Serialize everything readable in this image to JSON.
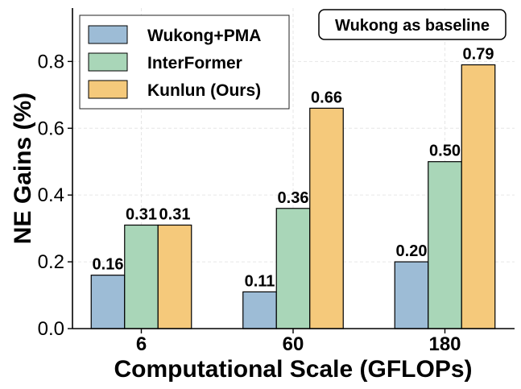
{
  "chart_data": {
    "type": "bar",
    "title": "",
    "xlabel": "Computational Scale (GFLOPs)",
    "ylabel": "NE Gains (%)",
    "categories": [
      "6",
      "60",
      "180"
    ],
    "ylim": [
      0,
      0.96
    ],
    "yticks": [
      "0.0",
      "0.2",
      "0.4",
      "0.6",
      "0.8"
    ],
    "ytick_values": [
      0,
      0.2,
      0.4,
      0.6,
      0.8
    ],
    "grid": true,
    "legend_position": "top-left",
    "annotation": "Wukong as baseline",
    "series": [
      {
        "name": "Wukong+PMA",
        "color": "#9dbcd6",
        "values": [
          0.16,
          0.11,
          0.2
        ],
        "labels": [
          "0.16",
          "0.11",
          "0.20"
        ]
      },
      {
        "name": "InterFormer",
        "color": "#a9d6b8",
        "values": [
          0.31,
          0.36,
          0.5
        ],
        "labels": [
          "0.31",
          "0.36",
          "0.50"
        ]
      },
      {
        "name": "Kunlun (Ours)",
        "color": "#f5c97b",
        "values": [
          0.31,
          0.66,
          0.79
        ],
        "labels": [
          "0.31",
          "0.66",
          "0.79"
        ]
      }
    ]
  }
}
